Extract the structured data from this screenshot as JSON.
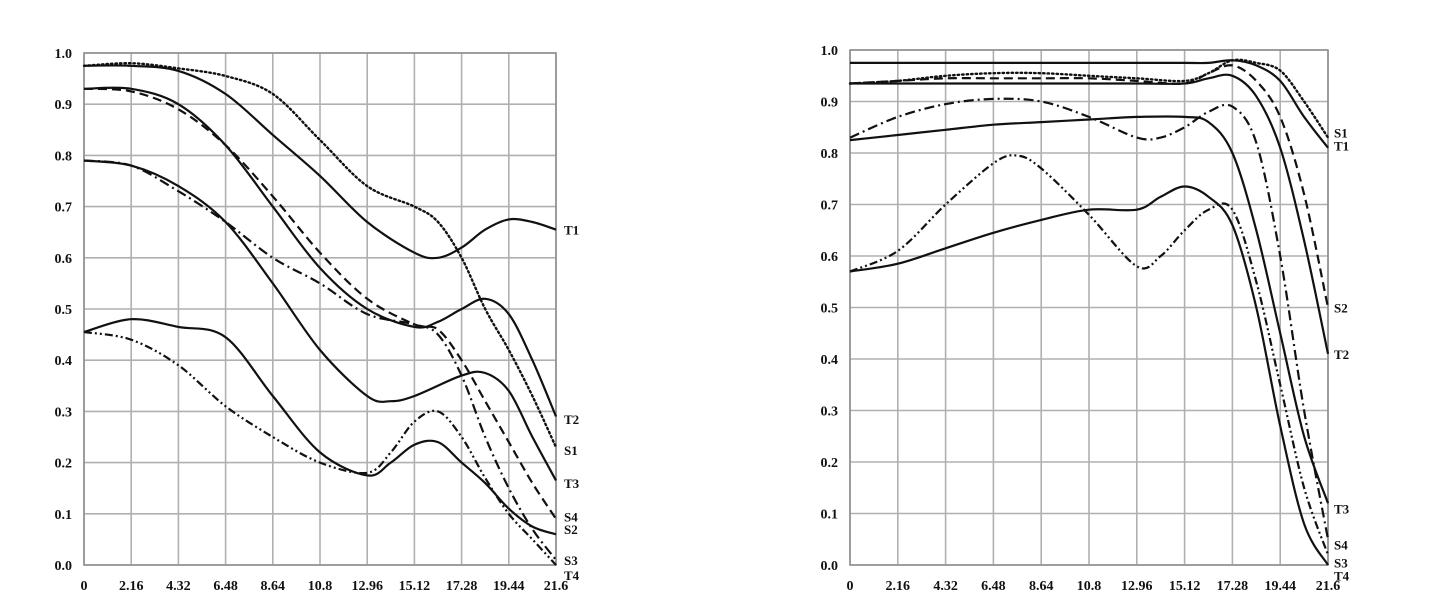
{
  "chart_data": [
    {
      "type": "line",
      "title": "",
      "xlabel": "",
      "ylabel": "",
      "x_ticks": [
        "0",
        "2.16",
        "4.32",
        "6.48",
        "8.64",
        "10.8",
        "12.96",
        "15.12",
        "17.28",
        "19.44",
        "21.6"
      ],
      "y_ticks": [
        "0.0",
        "0.1",
        "0.2",
        "0.3",
        "0.4",
        "0.5",
        "0.6",
        "0.7",
        "0.8",
        "0.9",
        "1.0"
      ],
      "xlim": [
        0,
        21.6
      ],
      "ylim": [
        0,
        1
      ],
      "grid": true,
      "series": [
        {
          "name": "T1",
          "style": "solid",
          "points": [
            [
              0,
              0.975
            ],
            [
              2.16,
              0.975
            ],
            [
              4.32,
              0.965
            ],
            [
              6.48,
              0.92
            ],
            [
              8.64,
              0.84
            ],
            [
              10.8,
              0.76
            ],
            [
              12.96,
              0.67
            ],
            [
              15.12,
              0.61
            ],
            [
              16.2,
              0.6
            ],
            [
              17.28,
              0.62
            ],
            [
              18.36,
              0.655
            ],
            [
              19.44,
              0.675
            ],
            [
              20.52,
              0.67
            ],
            [
              21.6,
              0.655
            ]
          ]
        },
        {
          "name": "T2",
          "style": "solid",
          "points": [
            [
              0,
              0.93
            ],
            [
              2.16,
              0.93
            ],
            [
              4.32,
              0.9
            ],
            [
              6.48,
              0.82
            ],
            [
              8.64,
              0.7
            ],
            [
              10.8,
              0.58
            ],
            [
              12.96,
              0.5
            ],
            [
              15.12,
              0.465
            ],
            [
              16.2,
              0.475
            ],
            [
              17.28,
              0.5
            ],
            [
              18.36,
              0.52
            ],
            [
              19.44,
              0.49
            ],
            [
              20.52,
              0.4
            ],
            [
              21.6,
              0.29
            ]
          ]
        },
        {
          "name": "S1",
          "style": "dotted",
          "points": [
            [
              0,
              0.975
            ],
            [
              2.16,
              0.98
            ],
            [
              4.32,
              0.97
            ],
            [
              6.48,
              0.955
            ],
            [
              8.64,
              0.92
            ],
            [
              10.8,
              0.83
            ],
            [
              12.96,
              0.74
            ],
            [
              15.12,
              0.7
            ],
            [
              16.2,
              0.67
            ],
            [
              17.28,
              0.6
            ],
            [
              18.36,
              0.5
            ],
            [
              19.44,
              0.42
            ],
            [
              20.52,
              0.33
            ],
            [
              21.6,
              0.23
            ]
          ]
        },
        {
          "name": "T3",
          "style": "solid",
          "points": [
            [
              0,
              0.79
            ],
            [
              2.16,
              0.78
            ],
            [
              4.32,
              0.74
            ],
            [
              6.48,
              0.67
            ],
            [
              8.64,
              0.55
            ],
            [
              10.8,
              0.42
            ],
            [
              12.96,
              0.33
            ],
            [
              14.04,
              0.32
            ],
            [
              15.12,
              0.33
            ],
            [
              17.28,
              0.37
            ],
            [
              18.36,
              0.375
            ],
            [
              19.44,
              0.34
            ],
            [
              20.52,
              0.25
            ],
            [
              21.6,
              0.165
            ]
          ]
        },
        {
          "name": "S4",
          "style": "dashed",
          "points": [
            [
              0,
              0.93
            ],
            [
              2.16,
              0.925
            ],
            [
              4.32,
              0.89
            ],
            [
              6.48,
              0.82
            ],
            [
              8.64,
              0.72
            ],
            [
              10.8,
              0.61
            ],
            [
              12.96,
              0.52
            ],
            [
              15.12,
              0.47
            ],
            [
              16.2,
              0.46
            ],
            [
              17.28,
              0.4
            ],
            [
              18.36,
              0.32
            ],
            [
              19.44,
              0.24
            ],
            [
              20.52,
              0.16
            ],
            [
              21.6,
              0.09
            ]
          ]
        },
        {
          "name": "S2",
          "style": "solid",
          "points": [
            [
              0,
              0.455
            ],
            [
              2.16,
              0.48
            ],
            [
              4.32,
              0.465
            ],
            [
              6.48,
              0.445
            ],
            [
              8.64,
              0.33
            ],
            [
              10.8,
              0.22
            ],
            [
              12.96,
              0.175
            ],
            [
              14.04,
              0.2
            ],
            [
              15.12,
              0.235
            ],
            [
              16.2,
              0.24
            ],
            [
              17.28,
              0.2
            ],
            [
              18.36,
              0.16
            ],
            [
              19.44,
              0.11
            ],
            [
              20.52,
              0.075
            ],
            [
              21.6,
              0.06
            ]
          ]
        },
        {
          "name": "S3",
          "style": "dash-dot",
          "points": [
            [
              0,
              0.79
            ],
            [
              2.16,
              0.78
            ],
            [
              4.32,
              0.73
            ],
            [
              6.48,
              0.67
            ],
            [
              8.64,
              0.6
            ],
            [
              10.8,
              0.55
            ],
            [
              12.96,
              0.49
            ],
            [
              15.12,
              0.47
            ],
            [
              16.2,
              0.45
            ],
            [
              17.28,
              0.37
            ],
            [
              18.36,
              0.25
            ],
            [
              19.44,
              0.15
            ],
            [
              20.52,
              0.07
            ],
            [
              21.6,
              0.01
            ]
          ]
        },
        {
          "name": "T4",
          "style": "dash-dot-dot",
          "points": [
            [
              0,
              0.455
            ],
            [
              2.16,
              0.44
            ],
            [
              4.32,
              0.39
            ],
            [
              6.48,
              0.31
            ],
            [
              8.64,
              0.25
            ],
            [
              10.8,
              0.2
            ],
            [
              12.96,
              0.18
            ],
            [
              14.04,
              0.22
            ],
            [
              15.12,
              0.28
            ],
            [
              16.2,
              0.3
            ],
            [
              17.28,
              0.25
            ],
            [
              18.36,
              0.17
            ],
            [
              19.44,
              0.1
            ],
            [
              20.52,
              0.05
            ],
            [
              21.6,
              0.0
            ]
          ]
        }
      ]
    },
    {
      "type": "line",
      "title": "",
      "xlabel": "",
      "ylabel": "",
      "x_ticks": [
        "0",
        "2.16",
        "4.32",
        "6.48",
        "8.64",
        "10.8",
        "12.96",
        "15.12",
        "17.28",
        "19.44",
        "21.6"
      ],
      "y_ticks": [
        "0.0",
        "0.1",
        "0.2",
        "0.3",
        "0.4",
        "0.5",
        "0.6",
        "0.7",
        "0.8",
        "0.9",
        "1.0"
      ],
      "xlim": [
        0,
        21.6
      ],
      "ylim": [
        0,
        1
      ],
      "grid": true,
      "series": [
        {
          "name": "S1",
          "style": "dotted",
          "points": [
            [
              0,
              0.935
            ],
            [
              2.16,
              0.94
            ],
            [
              4.32,
              0.95
            ],
            [
              6.48,
              0.955
            ],
            [
              8.64,
              0.955
            ],
            [
              10.8,
              0.95
            ],
            [
              12.96,
              0.945
            ],
            [
              15.12,
              0.94
            ],
            [
              16.2,
              0.955
            ],
            [
              17.28,
              0.98
            ],
            [
              18.36,
              0.975
            ],
            [
              19.44,
              0.96
            ],
            [
              20.52,
              0.9
            ],
            [
              21.6,
              0.83
            ]
          ]
        },
        {
          "name": "T1",
          "style": "solid",
          "points": [
            [
              0,
              0.975
            ],
            [
              2.16,
              0.975
            ],
            [
              4.32,
              0.975
            ],
            [
              6.48,
              0.975
            ],
            [
              8.64,
              0.975
            ],
            [
              10.8,
              0.975
            ],
            [
              12.96,
              0.975
            ],
            [
              15.12,
              0.975
            ],
            [
              16.2,
              0.975
            ],
            [
              17.28,
              0.98
            ],
            [
              18.36,
              0.97
            ],
            [
              19.44,
              0.94
            ],
            [
              20.52,
              0.87
            ],
            [
              21.6,
              0.81
            ]
          ]
        },
        {
          "name": "S2",
          "style": "dashed",
          "points": [
            [
              0,
              0.935
            ],
            [
              2.16,
              0.94
            ],
            [
              4.32,
              0.945
            ],
            [
              6.48,
              0.945
            ],
            [
              8.64,
              0.945
            ],
            [
              10.8,
              0.945
            ],
            [
              12.96,
              0.94
            ],
            [
              15.12,
              0.935
            ],
            [
              16.2,
              0.955
            ],
            [
              17.28,
              0.97
            ],
            [
              18.36,
              0.94
            ],
            [
              19.44,
              0.87
            ],
            [
              20.52,
              0.72
            ],
            [
              21.6,
              0.5
            ]
          ]
        },
        {
          "name": "T2",
          "style": "solid",
          "points": [
            [
              0,
              0.935
            ],
            [
              2.16,
              0.935
            ],
            [
              4.32,
              0.935
            ],
            [
              6.48,
              0.935
            ],
            [
              8.64,
              0.935
            ],
            [
              10.8,
              0.935
            ],
            [
              12.96,
              0.935
            ],
            [
              15.12,
              0.935
            ],
            [
              16.2,
              0.945
            ],
            [
              17.28,
              0.95
            ],
            [
              18.36,
              0.91
            ],
            [
              19.44,
              0.81
            ],
            [
              20.52,
              0.63
            ],
            [
              21.6,
              0.41
            ]
          ]
        },
        {
          "name": "T3",
          "style": "solid",
          "points": [
            [
              0,
              0.825
            ],
            [
              2.16,
              0.835
            ],
            [
              4.32,
              0.845
            ],
            [
              6.48,
              0.855
            ],
            [
              8.64,
              0.86
            ],
            [
              10.8,
              0.865
            ],
            [
              12.96,
              0.87
            ],
            [
              15.12,
              0.87
            ],
            [
              16.2,
              0.86
            ],
            [
              17.28,
              0.8
            ],
            [
              18.36,
              0.65
            ],
            [
              19.44,
              0.45
            ],
            [
              20.52,
              0.25
            ],
            [
              21.6,
              0.12
            ]
          ]
        },
        {
          "name": "S4",
          "style": "dash-dot",
          "points": [
            [
              0,
              0.83
            ],
            [
              2.16,
              0.87
            ],
            [
              4.32,
              0.895
            ],
            [
              6.48,
              0.905
            ],
            [
              8.64,
              0.9
            ],
            [
              10.8,
              0.87
            ],
            [
              12.96,
              0.83
            ],
            [
              14.04,
              0.83
            ],
            [
              15.12,
              0.85
            ],
            [
              16.2,
              0.88
            ],
            [
              17.28,
              0.89
            ],
            [
              18.36,
              0.82
            ],
            [
              19.44,
              0.6
            ],
            [
              20.52,
              0.3
            ],
            [
              21.6,
              0.05
            ]
          ]
        },
        {
          "name": "S3",
          "style": "dash-dot-dot",
          "points": [
            [
              0,
              0.57
            ],
            [
              2.16,
              0.61
            ],
            [
              4.32,
              0.7
            ],
            [
              6.48,
              0.78
            ],
            [
              7.56,
              0.795
            ],
            [
              8.64,
              0.77
            ],
            [
              10.8,
              0.68
            ],
            [
              12.96,
              0.58
            ],
            [
              14.04,
              0.6
            ],
            [
              15.12,
              0.65
            ],
            [
              16.2,
              0.69
            ],
            [
              17.28,
              0.69
            ],
            [
              18.36,
              0.55
            ],
            [
              19.44,
              0.35
            ],
            [
              20.52,
              0.15
            ],
            [
              21.6,
              0.02
            ]
          ]
        },
        {
          "name": "T4",
          "style": "solid",
          "points": [
            [
              0,
              0.57
            ],
            [
              2.16,
              0.585
            ],
            [
              4.32,
              0.615
            ],
            [
              6.48,
              0.645
            ],
            [
              8.64,
              0.67
            ],
            [
              10.8,
              0.69
            ],
            [
              12.96,
              0.69
            ],
            [
              14.04,
              0.715
            ],
            [
              15.12,
              0.735
            ],
            [
              16.2,
              0.715
            ],
            [
              17.28,
              0.66
            ],
            [
              18.36,
              0.5
            ],
            [
              19.44,
              0.27
            ],
            [
              20.52,
              0.08
            ],
            [
              21.6,
              0.0
            ]
          ]
        }
      ]
    }
  ]
}
